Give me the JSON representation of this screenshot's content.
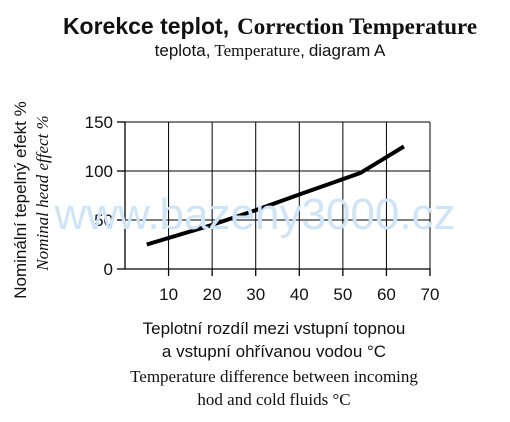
{
  "title": {
    "cz": "Korekce teplot,",
    "en": "Correction Temperature"
  },
  "subtitle": {
    "cz1": "teplota",
    "sep1": ",",
    "en1": "Temperature",
    "sep2": ",",
    "cz2": "diagram A"
  },
  "watermark": "www.bazeny3000.cz",
  "colors": {
    "watermark": "#cfe4f6",
    "ink": "#000000"
  },
  "chart_data": {
    "type": "line",
    "ylabel_cz": "Nominální tepelný efekt %",
    "ylabel_en": "Nominal head effect %",
    "xlabel_cz_1": "Teplotní rozdíl mezi vstupní topnou",
    "xlabel_cz_2": "a vstupní ohřívanou vodou °C",
    "xlabel_en_1": "Temperature difference between incoming",
    "xlabel_en_2": "hod and cold fluids °C",
    "xlim": [
      0,
      70
    ],
    "ylim": [
      0,
      150
    ],
    "x_ticks": [
      10,
      20,
      30,
      40,
      50,
      60,
      70
    ],
    "x_tick_labels": [
      "10",
      "20",
      "30",
      "40",
      "50",
      "60",
      "70"
    ],
    "y_ticks": [
      0,
      50,
      100,
      150
    ],
    "y_tick_labels": [
      "0",
      "50",
      "100",
      "150"
    ],
    "grid": true,
    "series": [
      {
        "x": [
          5,
          20,
          30,
          40,
          54,
          64
        ],
        "y": [
          25,
          45,
          60,
          76,
          98,
          125
        ]
      }
    ]
  }
}
